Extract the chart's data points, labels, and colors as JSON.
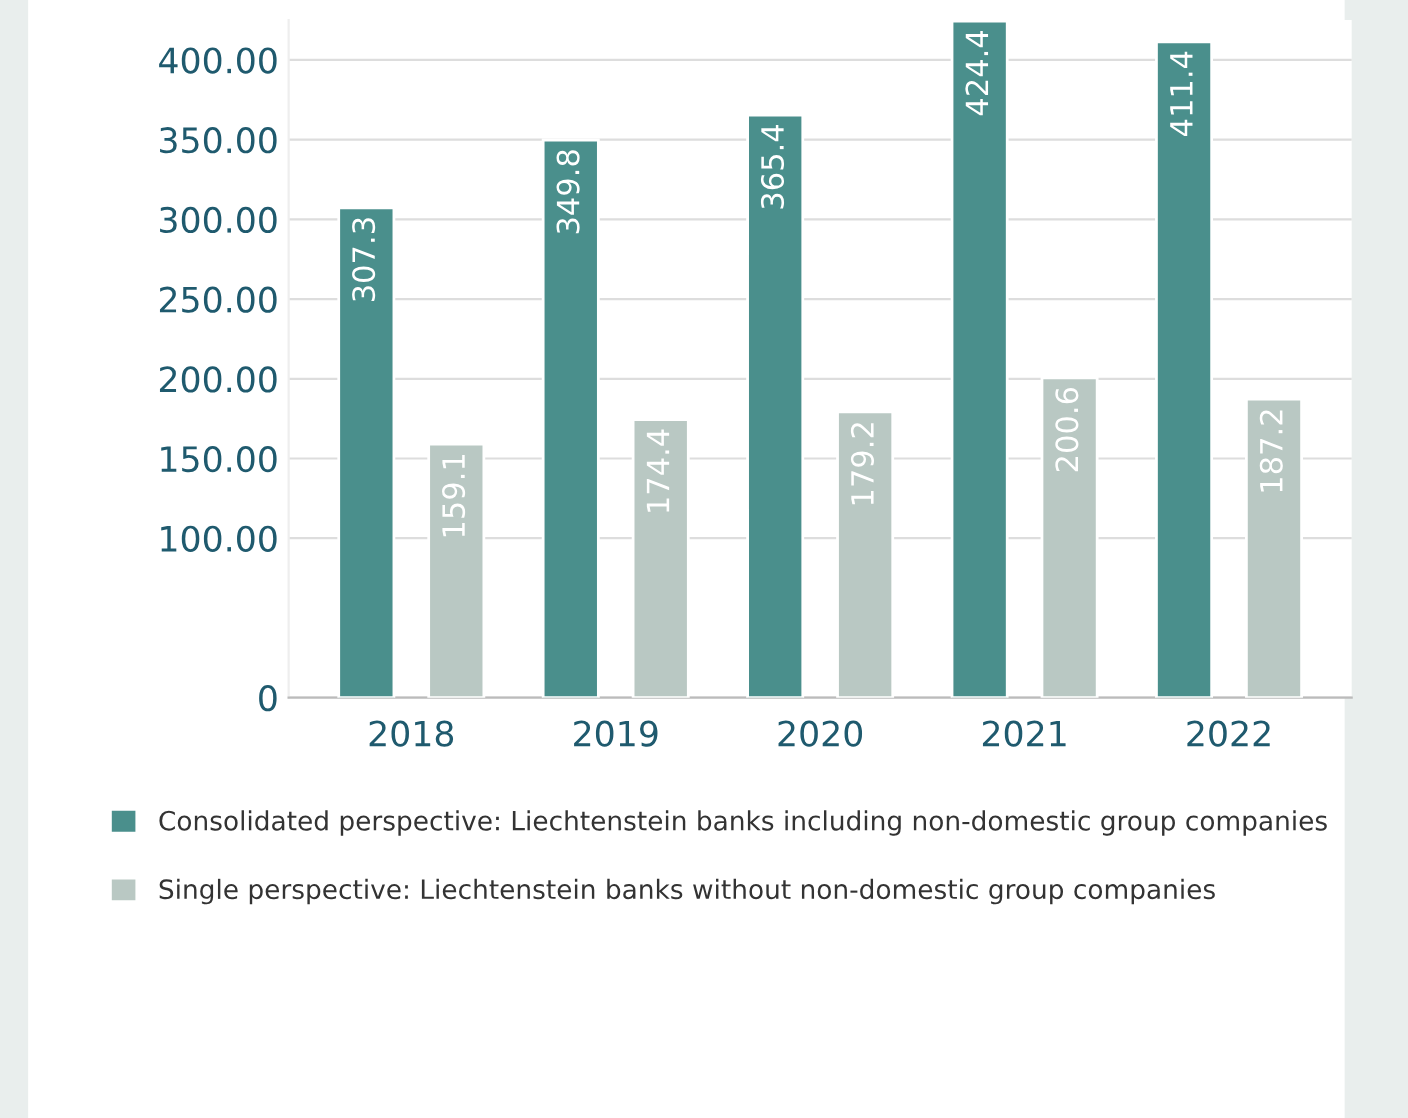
{
  "chart_data": {
    "type": "bar",
    "categories": [
      "2018",
      "2019",
      "2020",
      "2021",
      "2022"
    ],
    "series": [
      {
        "name": "Consolidated perspective: Liechtenstein banks including non-domestic group companies",
        "color": "#4a8f8c",
        "values": [
          307.3,
          349.8,
          365.4,
          424.4,
          411.4
        ]
      },
      {
        "name": "Single perspective: Liechtenstein banks without non-domestic group companies",
        "color": "#b9c8c3",
        "values": [
          159.1,
          174.4,
          179.2,
          200.6,
          187.2
        ]
      }
    ],
    "ylim": [
      0,
      425
    ],
    "yticks": [
      0,
      {
        "value": 100,
        "label": "100.00"
      },
      {
        "value": 150,
        "label": "150.00"
      },
      {
        "value": 200,
        "label": "200.00"
      },
      {
        "value": 250,
        "label": "250.00"
      },
      {
        "value": 300,
        "label": "300.00"
      },
      {
        "value": 350,
        "label": "350.00"
      },
      {
        "value": 400,
        "label": "400.00"
      }
    ],
    "grid": "y",
    "data_labels": true,
    "legend": "bottom"
  }
}
